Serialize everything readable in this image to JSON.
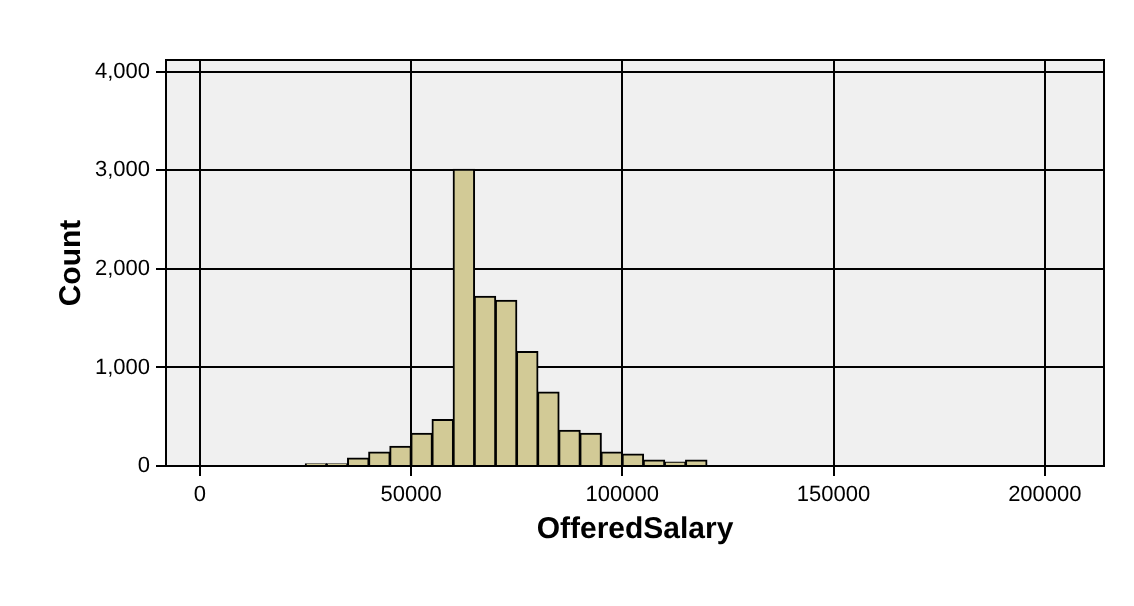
{
  "chart_data": {
    "type": "histogram",
    "xlabel": "OfferedSalary",
    "ylabel": "Count",
    "bins": [
      25000,
      30000,
      35000,
      40000,
      45000,
      50000,
      55000,
      60000,
      65000,
      70000,
      75000,
      80000,
      85000,
      90000,
      95000,
      100000,
      105000,
      110000,
      115000,
      120000,
      125000,
      130000,
      135000,
      140000,
      145000,
      150000,
      155000,
      160000,
      165000,
      170000,
      175000,
      180000,
      185000,
      190000,
      195000,
      200000
    ],
    "values": [
      20,
      20,
      80,
      140,
      200,
      330,
      470,
      3010,
      1720,
      1680,
      1160,
      750,
      360,
      330,
      140,
      120,
      60,
      40,
      60,
      10,
      10,
      10,
      0,
      0,
      0,
      10,
      0,
      10,
      0,
      0,
      0,
      0,
      0,
      0,
      10
    ],
    "color": "#d2ca96",
    "xlim": [
      -8000,
      214000
    ],
    "xticks": [
      0,
      50000,
      100000,
      150000,
      200000
    ],
    "ylim": [
      0,
      4120
    ],
    "yticks": [
      {
        "value": 0,
        "label": "0"
      },
      {
        "value": 1000,
        "label": "1,000"
      },
      {
        "value": 2000,
        "label": "2,000"
      },
      {
        "value": 3000,
        "label": "3,000"
      },
      {
        "value": 4000,
        "label": "4,000"
      }
    ],
    "grid": true,
    "legend": false
  }
}
